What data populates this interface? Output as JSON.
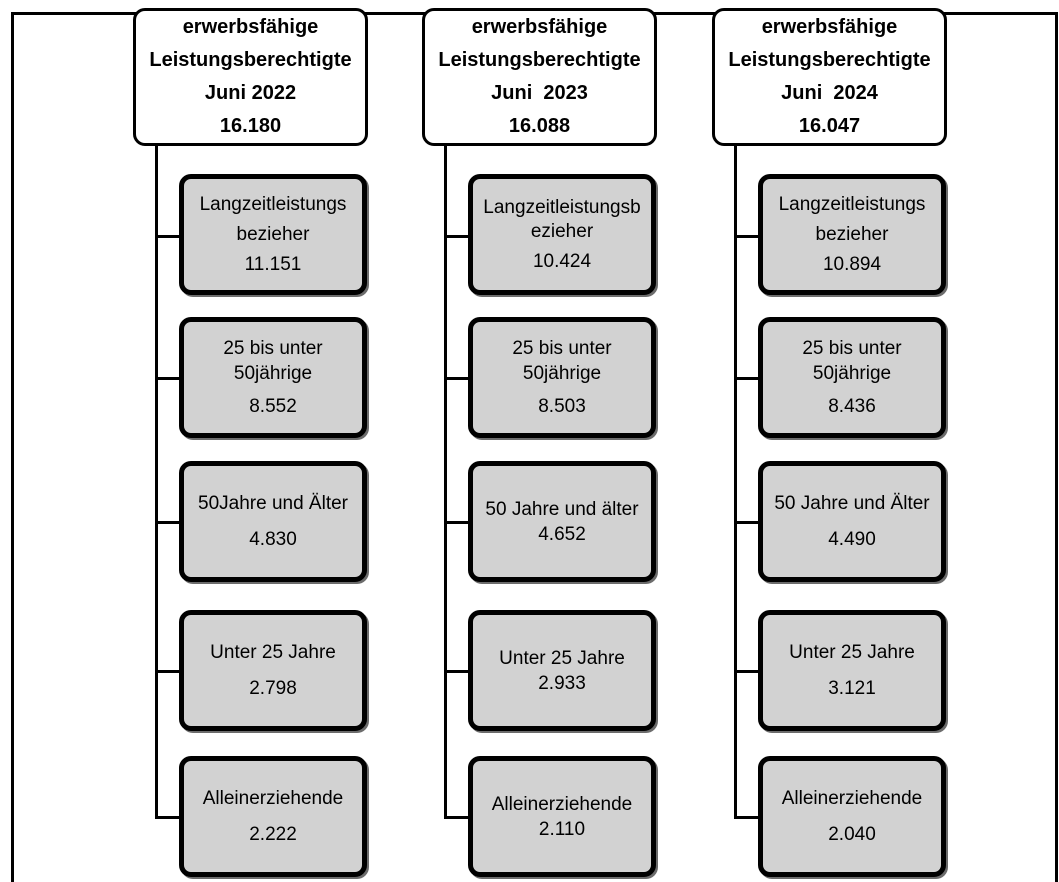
{
  "columns": [
    {
      "header": [
        "erwerbsfähige",
        "Leistungsberechtigte",
        "Juni 2022",
        "16.180"
      ],
      "items": [
        {
          "lines": [
            "Langzeitleistungs",
            "bezieher",
            "11.151"
          ]
        },
        {
          "lines": [
            "25 bis unter",
            "50jährige",
            "8.552"
          ]
        },
        {
          "lines": [
            "50Jahre und Älter",
            "4.830"
          ]
        },
        {
          "lines": [
            "Unter 25 Jahre",
            "2.798"
          ]
        },
        {
          "lines": [
            "Alleinerziehende",
            "2.222"
          ]
        }
      ]
    },
    {
      "header": [
        "erwerbsfähige",
        "Leistungsberechtigte",
        "Juni  2023",
        "16.088"
      ],
      "items": [
        {
          "lines": [
            "Langzeitleistungsb",
            "ezieher",
            "10.424"
          ]
        },
        {
          "lines": [
            "25 bis unter",
            "50jährige",
            "8.503"
          ]
        },
        {
          "lines": [
            "50 Jahre und älter",
            "4.652"
          ]
        },
        {
          "lines": [
            "Unter 25 Jahre",
            "2.933"
          ]
        },
        {
          "lines": [
            "Alleinerziehende",
            "2.110"
          ]
        }
      ]
    },
    {
      "header": [
        "erwerbsfähige",
        "Leistungsberechtigte",
        "Juni  2024",
        "16.047"
      ],
      "items": [
        {
          "lines": [
            "Langzeitleistungs",
            "bezieher",
            "10.894"
          ]
        },
        {
          "lines": [
            "25 bis unter",
            "50jährige",
            "8.436"
          ]
        },
        {
          "lines": [
            "50 Jahre und Älter",
            "4.490"
          ]
        },
        {
          "lines": [
            "Unter 25 Jahre",
            "3.121"
          ]
        },
        {
          "lines": [
            "Alleinerziehende",
            "2.040"
          ]
        }
      ]
    }
  ]
}
